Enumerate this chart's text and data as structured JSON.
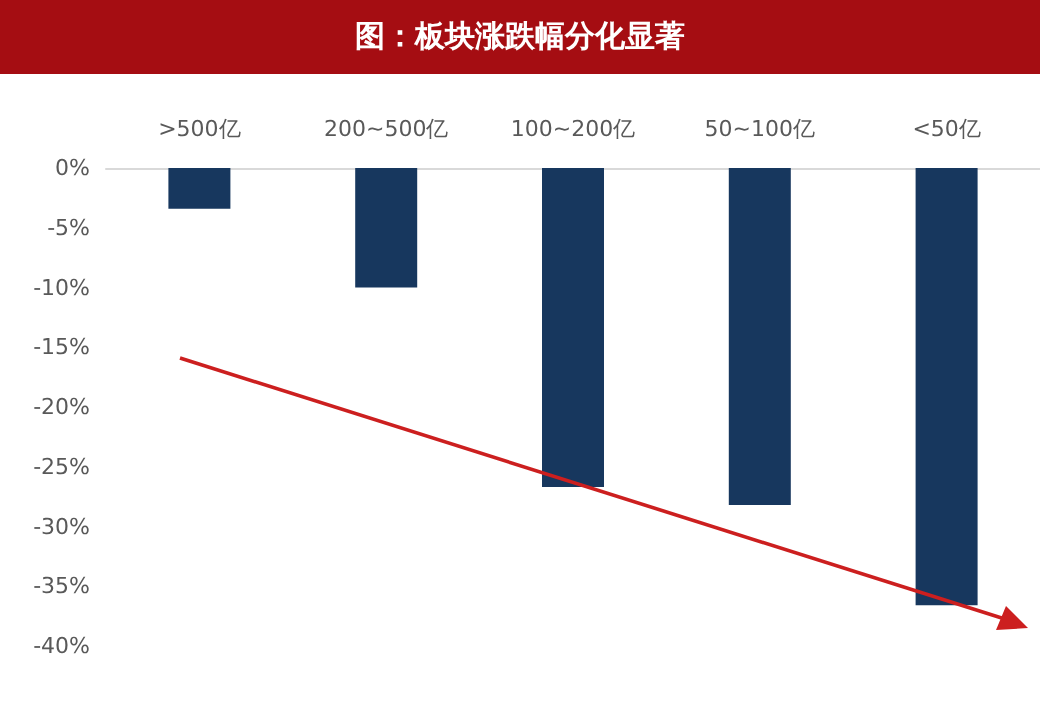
{
  "chart_data": {
    "type": "bar",
    "title": "图：板块涨跌幅分化显著",
    "categories": [
      ">500亿",
      "200~500亿",
      "100~200亿",
      "50~100亿",
      "<50亿"
    ],
    "values": [
      -3.4,
      -10,
      -26.7,
      -28.2,
      -36.6
    ],
    "color": "#17375e",
    "ylim": [
      -40,
      0
    ],
    "yticks": [
      {
        "value": 0,
        "label": "0%"
      },
      {
        "value": -5,
        "label": "-5%"
      },
      {
        "value": -10,
        "label": "-10%"
      },
      {
        "value": -15,
        "label": "-15%"
      },
      {
        "value": -20,
        "label": "-20%"
      },
      {
        "value": -25,
        "label": "-25%"
      },
      {
        "value": -30,
        "label": "-30%"
      },
      {
        "value": -35,
        "label": "-35%"
      },
      {
        "value": -40,
        "label": "-40%"
      }
    ],
    "grid": false
  }
}
